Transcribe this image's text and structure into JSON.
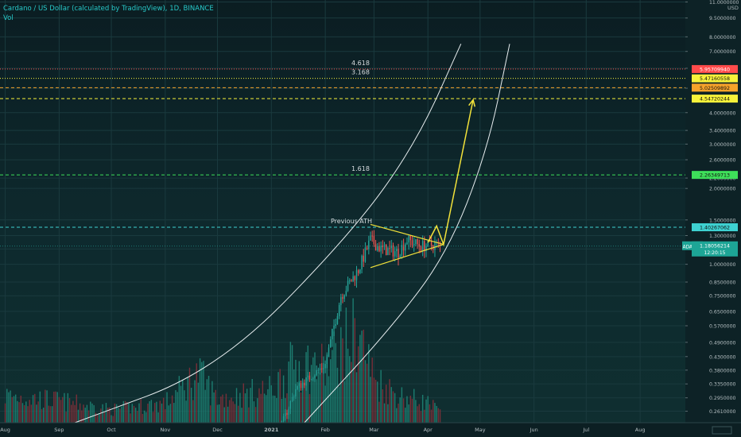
{
  "header": {
    "title": "Cardano / US Dollar (calculated by TradingView), 1D, BINANCE",
    "indicator": "Vol"
  },
  "chart_data": {
    "type": "candlestick",
    "symbol_label": "ADAUSD",
    "price_unit": "USD",
    "y_scale": "log",
    "ylim": [
      0.235,
      11.2
    ],
    "xlim": [
      "2020-07-29",
      "2021-08-27"
    ],
    "y_tick_labels": [
      "11.0000000",
      "9.5000000",
      "8.0000000",
      "7.0000000",
      "6.0000000",
      "5.0000000",
      "4.0000000",
      "3.4000000",
      "3.0000000",
      "2.6000000",
      "2.2000000",
      "2.0000000",
      "1.5000000",
      "1.3000000",
      "1.1500000",
      "1.0000000",
      "0.8500000",
      "0.7500000",
      "0.6500000",
      "0.5700000",
      "0.4900000",
      "0.4300000",
      "0.3800000",
      "0.3350000",
      "0.2950000",
      "0.2610000"
    ],
    "y_tick_values": [
      11,
      9.5,
      8,
      7,
      6,
      5,
      4,
      3.4,
      3,
      2.6,
      2.2,
      2,
      1.5,
      1.3,
      1.15,
      1.0,
      0.85,
      0.75,
      0.65,
      0.57,
      0.49,
      0.43,
      0.38,
      0.335,
      0.295,
      0.261
    ],
    "x_tick_labels": [
      "Aug",
      "Sep",
      "Oct",
      "Nov",
      "Dec",
      "2021",
      "Feb",
      "Mar",
      "Apr",
      "May",
      "Jun",
      "Jul",
      "Aug"
    ],
    "x_tick_dates": [
      "2020-08-01",
      "2020-09-01",
      "2020-10-01",
      "2020-11-01",
      "2020-12-01",
      "2021-01-01",
      "2021-02-01",
      "2021-03-01",
      "2021-04-01",
      "2021-05-01",
      "2021-06-01",
      "2021-07-01",
      "2021-08-01"
    ],
    "current_price": {
      "label": "1.18056214",
      "value": 1.18056214,
      "countdown": "12:20:15"
    },
    "horizontal_levels": [
      {
        "price": 5.9570994,
        "label": "5.95709940",
        "color": "#ff4b4b",
        "style": "dotted",
        "fib": "4.618"
      },
      {
        "price": 5.47160558,
        "label": "5.47160558",
        "color": "#f7f23a",
        "style": "dotted",
        "fib": "3.168"
      },
      {
        "price": 5.02509892,
        "label": "5.02509892",
        "color": "#f7a32a",
        "style": "dashed",
        "fib": ""
      },
      {
        "price": 4.54720244,
        "label": "4.54720244",
        "color": "#f7f23a",
        "style": "dashed",
        "fib": ""
      },
      {
        "price": 2.26349713,
        "label": "2.26349713",
        "color": "#3ee05a",
        "style": "dashed",
        "fib": "1.618"
      },
      {
        "price": 1.40267062,
        "label": "1.40267062",
        "color": "#3ed1d1",
        "style": "dashed",
        "fib": "Previous ATH"
      }
    ],
    "curves": [
      {
        "name": "upper-curve",
        "points": [
          [
            "2020-09-10",
            0.235
          ],
          [
            "2020-12-01",
            0.38
          ],
          [
            "2021-02-15",
            1.3
          ],
          [
            "2021-03-25",
            3.0
          ],
          [
            "2021-04-20",
            7.5
          ]
        ]
      },
      {
        "name": "lower-curve",
        "points": [
          [
            "2021-01-20",
            0.235
          ],
          [
            "2021-03-10",
            0.55
          ],
          [
            "2021-04-12",
            1.1
          ],
          [
            "2021-05-05",
            2.8
          ],
          [
            "2021-05-18",
            7.5
          ]
        ]
      }
    ],
    "projection": [
      [
        "2021-04-01",
        1.22
      ],
      [
        "2021-04-06",
        1.42
      ],
      [
        "2021-04-10",
        1.2
      ],
      [
        "2021-04-27",
        4.5
      ]
    ],
    "triangle": {
      "upper": [
        [
          "2021-02-27",
          1.44
        ],
        [
          "2021-04-10",
          1.2
        ]
      ],
      "lower": [
        [
          "2021-02-27",
          0.97
        ],
        [
          "2021-04-10",
          1.2
        ]
      ]
    },
    "price_path": [
      [
        "2020-08-01",
        0.135
      ],
      [
        "2020-08-15",
        0.145
      ],
      [
        "2020-09-01",
        0.118
      ],
      [
        "2020-09-15",
        0.095
      ],
      [
        "2020-10-01",
        0.105
      ],
      [
        "2020-10-15",
        0.102
      ],
      [
        "2020-11-01",
        0.098
      ],
      [
        "2020-11-20",
        0.13
      ],
      [
        "2020-12-01",
        0.16
      ],
      [
        "2020-12-15",
        0.155
      ],
      [
        "2021-01-01",
        0.18
      ],
      [
        "2021-01-15",
        0.32
      ],
      [
        "2021-02-01",
        0.4
      ],
      [
        "2021-02-10",
        0.75
      ],
      [
        "2021-02-20",
        0.95
      ],
      [
        "2021-02-27",
        1.25
      ],
      [
        "2021-03-05",
        1.15
      ],
      [
        "2021-03-15",
        1.12
      ],
      [
        "2021-03-20",
        1.25
      ],
      [
        "2021-03-28",
        1.18
      ],
      [
        "2021-04-05",
        1.2
      ],
      [
        "2021-04-08",
        1.18
      ]
    ],
    "volume_max": 100,
    "volume_profile": [
      [
        "2020-08-01",
        25
      ],
      [
        "2020-09-01",
        20
      ],
      [
        "2020-10-01",
        12
      ],
      [
        "2020-11-01",
        18
      ],
      [
        "2020-11-20",
        45
      ],
      [
        "2020-12-01",
        22
      ],
      [
        "2021-01-01",
        30
      ],
      [
        "2021-01-15",
        55
      ],
      [
        "2021-02-01",
        50
      ],
      [
        "2021-02-20",
        85
      ],
      [
        "2021-03-01",
        40
      ],
      [
        "2021-03-15",
        25
      ],
      [
        "2021-04-01",
        18
      ],
      [
        "2021-04-08",
        10
      ]
    ]
  }
}
